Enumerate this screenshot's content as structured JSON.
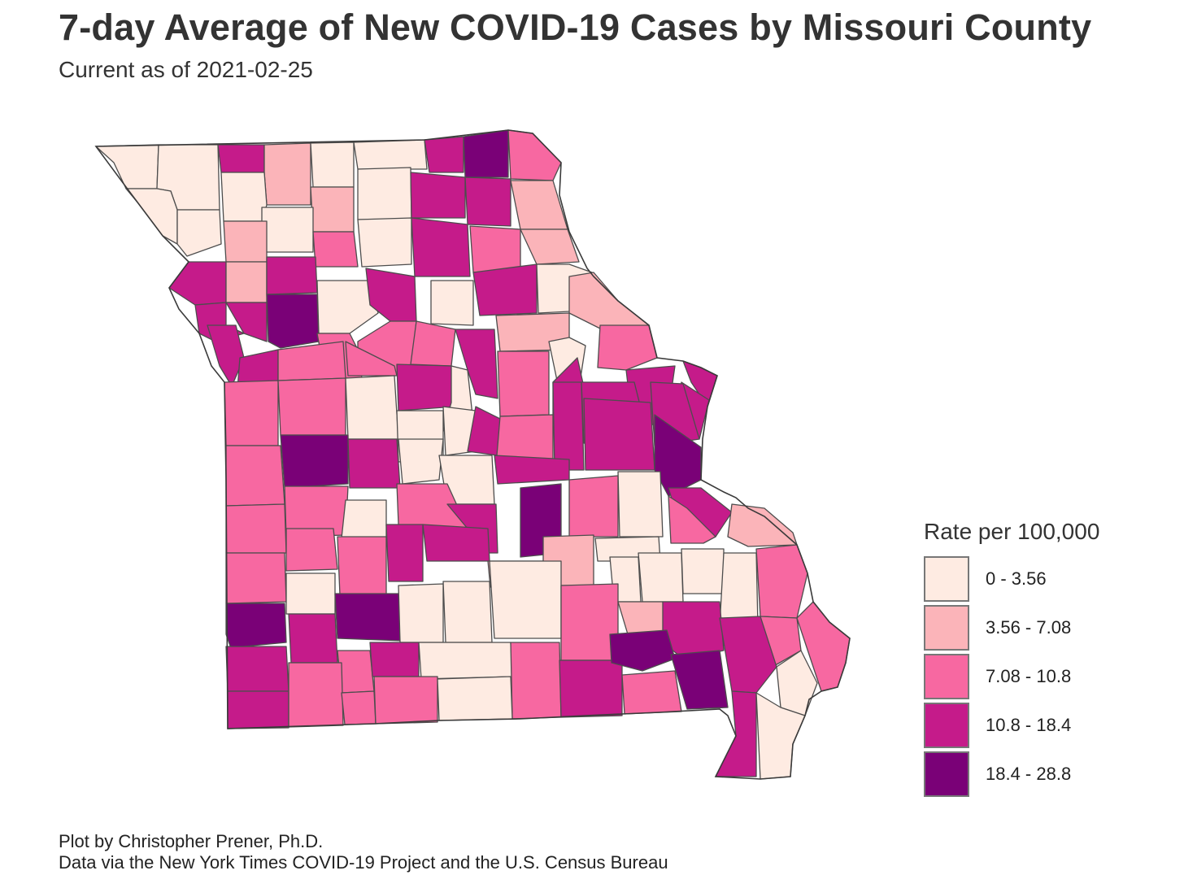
{
  "header": {
    "title": "7-day Average of New COVID-19 Cases by Missouri County",
    "subtitle": "Current as of 2021-02-25"
  },
  "legend": {
    "title": "Rate per 100,000",
    "classes": [
      {
        "label": "0 - 3.56",
        "color": "#feebe2"
      },
      {
        "label": "3.56 - 7.08",
        "color": "#fbb4b9"
      },
      {
        "label": "7.08 - 10.8",
        "color": "#f768a1"
      },
      {
        "label": "10.8 - 18.4",
        "color": "#c51b8a"
      },
      {
        "label": "18.4 - 28.8",
        "color": "#7a0177"
      }
    ]
  },
  "colors": {
    "county_border": "#4d4d4d",
    "text": "#333333"
  },
  "caption": {
    "line1": "Plot by Christopher Prener, Ph.D.",
    "line2": "Data via the New York Times COVID-19 Project and the U.S. Census Bureau"
  }
}
